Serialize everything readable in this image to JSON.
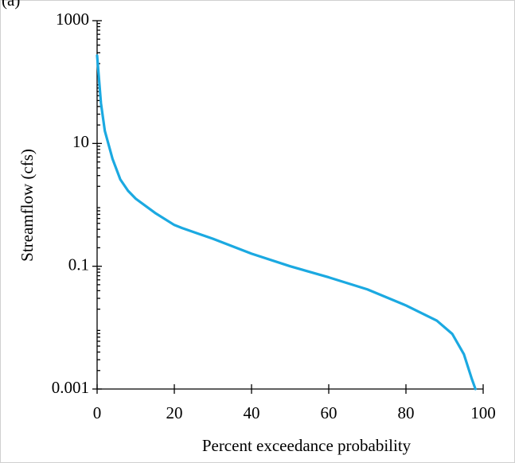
{
  "chart_data": {
    "type": "line",
    "panel_label": "(a)",
    "x_label": "Percent exceedance probability",
    "y_label": "Streamflow (cfs)",
    "x": [
      0,
      1,
      2,
      4,
      6,
      8,
      10,
      15,
      20,
      22,
      30,
      40,
      50,
      60,
      70,
      80,
      88,
      92,
      95,
      97,
      98
    ],
    "series": [
      {
        "color": "#1ba9e1",
        "values": [
          270,
          45,
          16,
          5.6,
          2.6,
          1.7,
          1.26,
          0.74,
          0.47,
          0.42,
          0.28,
          0.16,
          0.1,
          0.066,
          0.042,
          0.023,
          0.013,
          0.0079,
          0.0037,
          0.0015,
          0.001
        ]
      }
    ],
    "xlim": [
      0,
      100
    ],
    "xticks": [
      0,
      20,
      40,
      60,
      80,
      100
    ],
    "ylim": [
      0.001,
      1000
    ],
    "yticks": [
      0.001,
      0.1,
      10,
      1000
    ],
    "y_log": true,
    "y_minor_ticks": true
  }
}
